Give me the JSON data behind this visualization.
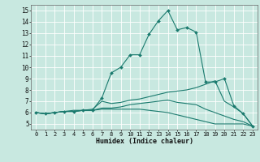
{
  "title": "",
  "xlabel": "Humidex (Indice chaleur)",
  "xlim": [
    -0.5,
    23.5
  ],
  "ylim": [
    4.5,
    15.5
  ],
  "xticks": [
    0,
    1,
    2,
    3,
    4,
    5,
    6,
    7,
    8,
    9,
    10,
    11,
    12,
    13,
    14,
    15,
    16,
    17,
    18,
    19,
    20,
    21,
    22,
    23
  ],
  "yticks": [
    5,
    6,
    7,
    8,
    9,
    10,
    11,
    12,
    13,
    14,
    15
  ],
  "bg_color": "#c8e8e0",
  "grid_color": "#ffffff",
  "line_color": "#1a7a6e",
  "lines": [
    {
      "x": [
        0,
        1,
        2,
        3,
        4,
        5,
        6,
        7,
        8,
        9,
        10,
        11,
        12,
        13,
        14,
        15,
        16,
        17,
        18,
        19,
        20,
        21,
        22,
        23
      ],
      "y": [
        6.0,
        5.9,
        6.0,
        6.1,
        6.1,
        6.2,
        6.2,
        7.3,
        9.5,
        10.0,
        11.1,
        11.1,
        12.9,
        14.1,
        15.0,
        13.3,
        13.5,
        13.1,
        8.7,
        8.7,
        9.0,
        6.6,
        5.9,
        4.8
      ],
      "marker": true
    },
    {
      "x": [
        0,
        1,
        2,
        3,
        4,
        5,
        6,
        7,
        8,
        9,
        10,
        11,
        12,
        13,
        14,
        15,
        16,
        17,
        18,
        19,
        20,
        21,
        22,
        23
      ],
      "y": [
        6.0,
        5.9,
        6.0,
        6.1,
        6.2,
        6.2,
        6.3,
        7.0,
        6.8,
        6.9,
        7.1,
        7.2,
        7.4,
        7.6,
        7.8,
        7.9,
        8.0,
        8.2,
        8.5,
        8.8,
        7.0,
        6.5,
        5.9,
        4.8
      ],
      "marker": false
    },
    {
      "x": [
        0,
        1,
        2,
        3,
        4,
        5,
        6,
        7,
        8,
        9,
        10,
        11,
        12,
        13,
        14,
        15,
        16,
        17,
        18,
        19,
        20,
        21,
        22,
        23
      ],
      "y": [
        6.0,
        5.9,
        6.0,
        6.1,
        6.1,
        6.2,
        6.2,
        6.4,
        6.4,
        6.5,
        6.7,
        6.8,
        6.9,
        7.0,
        7.1,
        6.9,
        6.8,
        6.7,
        6.3,
        6.0,
        5.7,
        5.4,
        5.2,
        4.8
      ],
      "marker": false
    },
    {
      "x": [
        0,
        1,
        2,
        3,
        4,
        5,
        6,
        7,
        8,
        9,
        10,
        11,
        12,
        13,
        14,
        15,
        16,
        17,
        18,
        19,
        20,
        21,
        22,
        23
      ],
      "y": [
        6.0,
        5.9,
        6.0,
        6.1,
        6.1,
        6.2,
        6.2,
        6.3,
        6.3,
        6.3,
        6.3,
        6.3,
        6.2,
        6.1,
        6.0,
        5.8,
        5.6,
        5.4,
        5.2,
        5.0,
        5.0,
        5.0,
        5.0,
        4.8
      ],
      "marker": false
    }
  ]
}
